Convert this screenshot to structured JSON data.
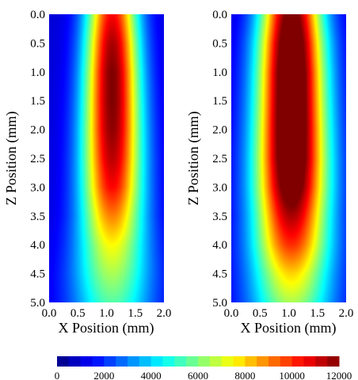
{
  "chart_data": [
    {
      "type": "heatmap",
      "title": "",
      "xlabel": "X Position (mm)",
      "ylabel": "Z Position (mm)",
      "xlim": [
        0.0,
        2.0
      ],
      "ylim": [
        0.0,
        5.0
      ],
      "x_ticks": [
        "0.0",
        "0.5",
        "1.0",
        "1.5",
        "2.0"
      ],
      "y_ticks": [
        "0.0",
        "0.5",
        "1.0",
        "1.5",
        "2.0",
        "2.5",
        "3.0",
        "3.5",
        "4.0",
        "4.5",
        "5.0"
      ],
      "y_inverted": true,
      "x_center": 1.1,
      "profile": {
        "z": [
          0.0,
          0.5,
          1.0,
          1.5,
          2.0,
          2.5,
          3.0,
          3.5,
          4.0,
          4.5,
          5.0
        ],
        "peak_value": [
          10500,
          11500,
          12000,
          12000,
          11800,
          11300,
          10500,
          9000,
          7500,
          6500,
          5500
        ],
        "width_mm": [
          0.32,
          0.33,
          0.34,
          0.35,
          0.36,
          0.37,
          0.38,
          0.4,
          0.44,
          0.48,
          0.5
        ]
      }
    },
    {
      "type": "heatmap",
      "title": "",
      "xlabel": "X Position (mm)",
      "ylabel": "Z Position (mm)",
      "xlim": [
        0.0,
        2.0
      ],
      "ylim": [
        0.0,
        5.0
      ],
      "x_ticks": [
        "0.0",
        "0.5",
        "1.0",
        "1.5",
        "2.0"
      ],
      "y_ticks": [
        "0.0",
        "0.5",
        "1.0",
        "1.5",
        "2.0",
        "2.5",
        "3.0",
        "3.5",
        "4.0",
        "4.5",
        "5.0"
      ],
      "y_inverted": true,
      "x_center": 1.05,
      "profile": {
        "z": [
          0.0,
          0.5,
          1.0,
          1.5,
          2.0,
          2.5,
          3.0,
          3.5,
          4.0,
          4.5,
          5.0
        ],
        "peak_value": [
          12500,
          13500,
          14000,
          14000,
          14000,
          13800,
          13000,
          11500,
          10000,
          8000,
          6500
        ],
        "width_mm": [
          0.38,
          0.4,
          0.41,
          0.42,
          0.43,
          0.44,
          0.45,
          0.46,
          0.48,
          0.5,
          0.52
        ]
      }
    }
  ],
  "colorbar": {
    "min": 0,
    "max": 12000,
    "colormap": "jet",
    "tick_labels": [
      "0",
      "2000",
      "4000",
      "6000",
      "8000",
      "10000",
      "12000"
    ],
    "levels": 24
  }
}
